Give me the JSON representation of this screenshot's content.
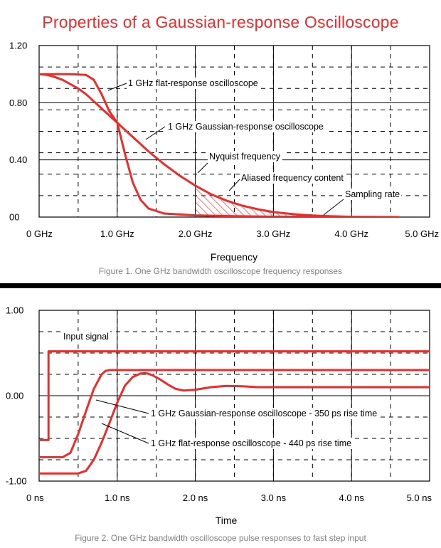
{
  "colors": {
    "accent": "#ee2b2b",
    "grid": "#000000",
    "caption": "#808080"
  },
  "figure1": {
    "caption": "Figure 1. One GHz bandwidth oscilloscope frequency responses",
    "chart_data": {
      "type": "line",
      "title": "Properties of a Gaussian-response Oscilloscope",
      "xlabel": "Frequency",
      "ylabel": "",
      "xlim": [
        0,
        5.0
      ],
      "ylim": [
        0,
        1.2
      ],
      "grid": true,
      "y_ticks": [
        {
          "value": 0,
          "label": "00"
        },
        {
          "value": 0.4,
          "label": "0.40"
        },
        {
          "value": 0.8,
          "label": "0.80"
        },
        {
          "value": 1.2,
          "label": "1.20"
        }
      ],
      "x_ticks": [
        {
          "value": 0,
          "label": "0 GHz"
        },
        {
          "value": 1,
          "label": "1.0 GHz"
        },
        {
          "value": 2,
          "label": "2.0 GHz"
        },
        {
          "value": 3,
          "label": "3.0 GHz"
        },
        {
          "value": 4,
          "label": "4.0 GHz"
        },
        {
          "value": 5,
          "label": "5.0 GHz"
        }
      ],
      "series": [
        {
          "name": "1 GHz flat-response oscilloscope",
          "x": [
            0,
            0.2,
            0.4,
            0.6,
            0.7,
            0.8,
            0.9,
            1.0,
            1.1,
            1.2,
            1.3,
            1.4,
            1.6,
            2.0,
            2.5,
            3.0,
            4.0,
            4.6
          ],
          "y": [
            1.0,
            1.0,
            1.0,
            0.995,
            0.96,
            0.86,
            0.74,
            0.66,
            0.44,
            0.24,
            0.12,
            0.06,
            0.025,
            0.012,
            0.006,
            0.003,
            0.001,
            0.0
          ]
        },
        {
          "name": "1 GHz Gaussian-response oscilloscope",
          "x": [
            0,
            0.1,
            0.2,
            0.3,
            0.4,
            0.5,
            0.6,
            0.7,
            0.8,
            0.9,
            1.0,
            1.1,
            1.2,
            1.4,
            1.6,
            1.8,
            2.0,
            2.2,
            2.4,
            2.6,
            2.8,
            3.0,
            3.3,
            3.6,
            4.0,
            4.3,
            4.6
          ],
          "y": [
            1.0,
            0.995,
            0.98,
            0.96,
            0.93,
            0.9,
            0.86,
            0.81,
            0.76,
            0.71,
            0.66,
            0.61,
            0.56,
            0.46,
            0.37,
            0.29,
            0.22,
            0.16,
            0.115,
            0.08,
            0.055,
            0.035,
            0.018,
            0.008,
            0.002,
            0.0005,
            0.0
          ]
        }
      ],
      "annotations": [
        {
          "text": "1 GHz flat-response oscilloscope",
          "target": "flat-response curve"
        },
        {
          "text": "1 GHz Gaussian-response oscilloscope",
          "target": "Gaussian-response curve"
        },
        {
          "text": "Nyquist frequency",
          "target": "2.0 GHz"
        },
        {
          "text": "Aliased frequency content",
          "target": "hatched area 2.0-3.3 GHz"
        },
        {
          "text": "Sampling rate",
          "target": "4.0 GHz"
        }
      ]
    }
  },
  "figure2": {
    "caption": "Figure 2. One GHz bandwidth oscilloscope pulse responses to fast step input",
    "chart_data": {
      "type": "line",
      "title": "",
      "xlabel": "Time",
      "ylabel": "",
      "xlim": [
        0,
        5.0
      ],
      "ylim": [
        -1.0,
        1.0
      ],
      "grid": true,
      "y_ticks": [
        {
          "value": -1.0,
          "label": "-1.00"
        },
        {
          "value": 0,
          "label": "0.00"
        },
        {
          "value": 1.0,
          "label": "1.00"
        }
      ],
      "x_ticks": [
        {
          "value": 0,
          "label": "0 ns"
        },
        {
          "value": 1,
          "label": "1.0 ns"
        },
        {
          "value": 2,
          "label": "2.0 ns"
        },
        {
          "value": 3,
          "label": "3.0 ns"
        },
        {
          "value": 4,
          "label": "4.0 ns"
        },
        {
          "value": 5,
          "label": "5.0 ns"
        }
      ],
      "series": [
        {
          "name": "Input signal",
          "x": [
            0,
            0.12,
            0.12,
            5.0
          ],
          "y": [
            -0.52,
            -0.52,
            0.52,
            0.52
          ]
        },
        {
          "name": "1 GHz Gaussian-response oscilloscope - 350 ps rise time",
          "x": [
            0,
            0.3,
            0.4,
            0.5,
            0.6,
            0.7,
            0.8,
            0.85,
            0.9,
            1.0,
            2.0,
            3.0,
            4.0,
            5.0
          ],
          "y": [
            -0.72,
            -0.72,
            -0.67,
            -0.45,
            -0.18,
            0.08,
            0.25,
            0.29,
            0.3,
            0.3,
            0.3,
            0.3,
            0.3,
            0.3
          ]
        },
        {
          "name": "1 GHz flat-response oscilloscope - 440 ps rise time",
          "x": [
            0,
            0.5,
            0.6,
            0.7,
            0.8,
            0.9,
            1.0,
            1.1,
            1.2,
            1.3,
            1.37,
            1.45,
            1.55,
            1.65,
            1.75,
            1.85,
            2.0,
            2.2,
            2.4,
            2.6,
            2.8,
            3.2,
            3.6,
            4.0,
            4.5,
            5.0
          ],
          "y": [
            -0.91,
            -0.91,
            -0.88,
            -0.75,
            -0.55,
            -0.32,
            -0.08,
            0.12,
            0.22,
            0.26,
            0.265,
            0.24,
            0.19,
            0.13,
            0.08,
            0.06,
            0.07,
            0.1,
            0.115,
            0.11,
            0.1,
            0.1,
            0.1,
            0.1,
            0.1,
            0.1
          ]
        }
      ],
      "annotations": [
        {
          "text": "Input signal",
          "target": "input step"
        },
        {
          "text": "1 GHz Gaussian-response oscilloscope - 350 ps rise time",
          "target": "Gaussian curve"
        },
        {
          "text": "1 GHz flat-response oscilloscope - 440 ps rise time",
          "target": "flat curve"
        }
      ]
    }
  }
}
